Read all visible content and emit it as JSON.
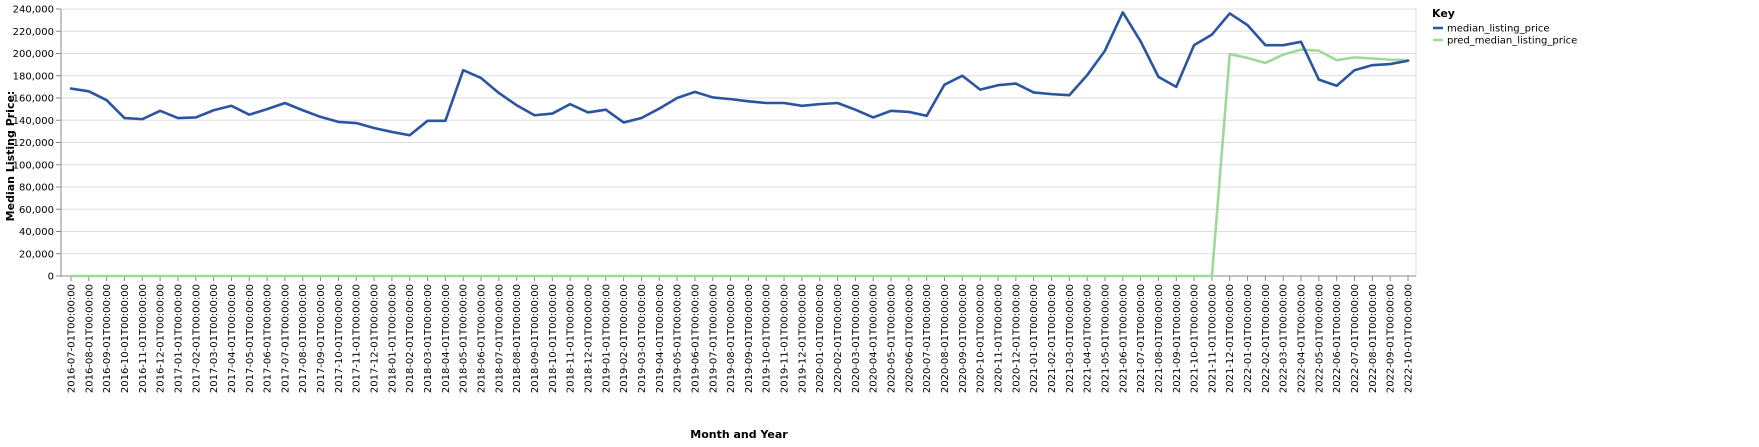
{
  "chart_data": {
    "type": "line",
    "xlabel": "Month and Year",
    "ylabel": "Median Listing Price:",
    "ylim": [
      0,
      240000
    ],
    "yticks": [
      0,
      20000,
      40000,
      60000,
      80000,
      100000,
      120000,
      140000,
      160000,
      180000,
      200000,
      220000,
      240000
    ],
    "ytick_labels": [
      "0",
      "20,000",
      "40,000",
      "60,000",
      "80,000",
      "100,000",
      "120,000",
      "140,000",
      "160,000",
      "180,000",
      "200,000",
      "220,000",
      "240,000"
    ],
    "grid": true,
    "legend": {
      "title": "Key",
      "placement": "top-right"
    },
    "x": [
      "2016-07-01T00:00:00",
      "2016-08-01T00:00:00",
      "2016-09-01T00:00:00",
      "2016-10-01T00:00:00",
      "2016-11-01T00:00:00",
      "2016-12-01T00:00:00",
      "2017-01-01T00:00:00",
      "2017-02-01T00:00:00",
      "2017-03-01T00:00:00",
      "2017-04-01T00:00:00",
      "2017-05-01T00:00:00",
      "2017-06-01T00:00:00",
      "2017-07-01T00:00:00",
      "2017-08-01T00:00:00",
      "2017-09-01T00:00:00",
      "2017-10-01T00:00:00",
      "2017-11-01T00:00:00",
      "2017-12-01T00:00:00",
      "2018-01-01T00:00:00",
      "2018-02-01T00:00:00",
      "2018-03-01T00:00:00",
      "2018-04-01T00:00:00",
      "2018-05-01T00:00:00",
      "2018-06-01T00:00:00",
      "2018-07-01T00:00:00",
      "2018-08-01T00:00:00",
      "2018-09-01T00:00:00",
      "2018-10-01T00:00:00",
      "2018-11-01T00:00:00",
      "2018-12-01T00:00:00",
      "2019-01-01T00:00:00",
      "2019-02-01T00:00:00",
      "2019-03-01T00:00:00",
      "2019-04-01T00:00:00",
      "2019-05-01T00:00:00",
      "2019-06-01T00:00:00",
      "2019-07-01T00:00:00",
      "2019-08-01T00:00:00",
      "2019-09-01T00:00:00",
      "2019-10-01T00:00:00",
      "2019-11-01T00:00:00",
      "2019-12-01T00:00:00",
      "2020-01-01T00:00:00",
      "2020-02-01T00:00:00",
      "2020-03-01T00:00:00",
      "2020-04-01T00:00:00",
      "2020-05-01T00:00:00",
      "2020-06-01T00:00:00",
      "2020-07-01T00:00:00",
      "2020-08-01T00:00:00",
      "2020-09-01T00:00:00",
      "2020-10-01T00:00:00",
      "2020-11-01T00:00:00",
      "2020-12-01T00:00:00",
      "2021-01-01T00:00:00",
      "2021-02-01T00:00:00",
      "2021-03-01T00:00:00",
      "2021-04-01T00:00:00",
      "2021-05-01T00:00:00",
      "2021-06-01T00:00:00",
      "2021-07-01T00:00:00",
      "2021-08-01T00:00:00",
      "2021-09-01T00:00:00",
      "2021-10-01T00:00:00",
      "2021-11-01T00:00:00",
      "2021-12-01T00:00:00",
      "2022-01-01T00:00:00",
      "2022-02-01T00:00:00",
      "2022-03-01T00:00:00",
      "2022-04-01T00:00:00",
      "2022-05-01T00:00:00",
      "2022-06-01T00:00:00",
      "2022-07-01T00:00:00",
      "2022-08-01T00:00:00",
      "2022-09-01T00:00:00",
      "2022-10-01T00:00:00"
    ],
    "series": [
      {
        "name": "median_listing_price",
        "color": "#2a55a0",
        "values": [
          168500,
          166000,
          158000,
          142000,
          141000,
          148500,
          142000,
          142500,
          149000,
          153000,
          145000,
          150000,
          155500,
          149000,
          143000,
          138500,
          137500,
          133000,
          129500,
          126500,
          139500,
          139500,
          185000,
          178000,
          164500,
          153500,
          144500,
          146000,
          154500,
          147000,
          149500,
          138000,
          142000,
          150500,
          160000,
          165500,
          160500,
          159000,
          157000,
          155500,
          155500,
          153000,
          154500,
          155500,
          149500,
          142500,
          148500,
          147500,
          144000,
          172000,
          180000,
          167500,
          171500,
          173000,
          165000,
          163500,
          162500,
          180500,
          202500,
          237000,
          211000,
          179000,
          170000,
          207500,
          217000,
          236000,
          225500,
          207500,
          207500,
          210500,
          176500,
          171000,
          185000,
          189500,
          190500,
          193500
        ]
      },
      {
        "name": "pred_median_listing_price",
        "color": "#9fd89a",
        "values": [
          0,
          0,
          0,
          0,
          0,
          0,
          0,
          0,
          0,
          0,
          0,
          0,
          0,
          0,
          0,
          0,
          0,
          0,
          0,
          0,
          0,
          0,
          0,
          0,
          0,
          0,
          0,
          0,
          0,
          0,
          0,
          0,
          0,
          0,
          0,
          0,
          0,
          0,
          0,
          0,
          0,
          0,
          0,
          0,
          0,
          0,
          0,
          0,
          0,
          0,
          0,
          0,
          0,
          0,
          0,
          0,
          0,
          0,
          0,
          0,
          0,
          0,
          0,
          0,
          0,
          199500,
          196000,
          191500,
          199000,
          203500,
          202500,
          194000,
          196500,
          195500,
          194500,
          194000
        ]
      }
    ]
  }
}
